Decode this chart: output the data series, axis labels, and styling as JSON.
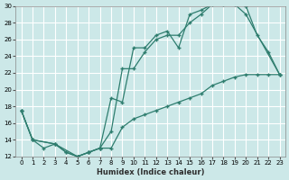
{
  "xlabel": "Humidex (Indice chaleur)",
  "bg_color": "#cce8e8",
  "grid_color": "#ffffff",
  "line_color": "#2e7d6e",
  "xlim": [
    -0.5,
    23.5
  ],
  "ylim": [
    12,
    30
  ],
  "xticks": [
    0,
    1,
    2,
    3,
    4,
    5,
    6,
    7,
    8,
    9,
    10,
    11,
    12,
    13,
    14,
    15,
    16,
    17,
    18,
    19,
    20,
    21,
    22,
    23
  ],
  "yticks": [
    12,
    14,
    16,
    18,
    20,
    22,
    24,
    26,
    28,
    30
  ],
  "line1_x": [
    0,
    1,
    2,
    3,
    4,
    5,
    6,
    7,
    8,
    9,
    10,
    11,
    12,
    13,
    14,
    15,
    16,
    17,
    18,
    19,
    20,
    21,
    22,
    23
  ],
  "line1_y": [
    17.5,
    14.0,
    13.0,
    13.5,
    12.5,
    12.0,
    12.5,
    13.0,
    19.0,
    18.5,
    25.0,
    25.0,
    26.5,
    27.0,
    25.0,
    29.0,
    29.5,
    30.2,
    30.2,
    30.2,
    30.0,
    26.5,
    24.5,
    21.8
  ],
  "line2_x": [
    0,
    1,
    3,
    4,
    5,
    6,
    7,
    8,
    9,
    10,
    11,
    12,
    13,
    14,
    15,
    16,
    17,
    18,
    19,
    20,
    23
  ],
  "line2_y": [
    17.5,
    14.0,
    13.5,
    12.5,
    12.0,
    12.5,
    13.0,
    15.0,
    22.5,
    22.5,
    24.5,
    26.0,
    26.5,
    26.5,
    28.0,
    29.0,
    30.2,
    30.2,
    30.2,
    29.0,
    21.8
  ],
  "line3_x": [
    0,
    1,
    3,
    5,
    6,
    7,
    8,
    9,
    10,
    11,
    12,
    13,
    14,
    15,
    16,
    17,
    18,
    19,
    20,
    21,
    22,
    23
  ],
  "line3_y": [
    17.5,
    14.0,
    13.5,
    12.0,
    12.5,
    13.0,
    13.0,
    15.5,
    16.5,
    17.0,
    17.5,
    18.0,
    18.5,
    19.0,
    19.5,
    20.5,
    21.0,
    21.5,
    21.8,
    21.8,
    21.8,
    21.8
  ]
}
